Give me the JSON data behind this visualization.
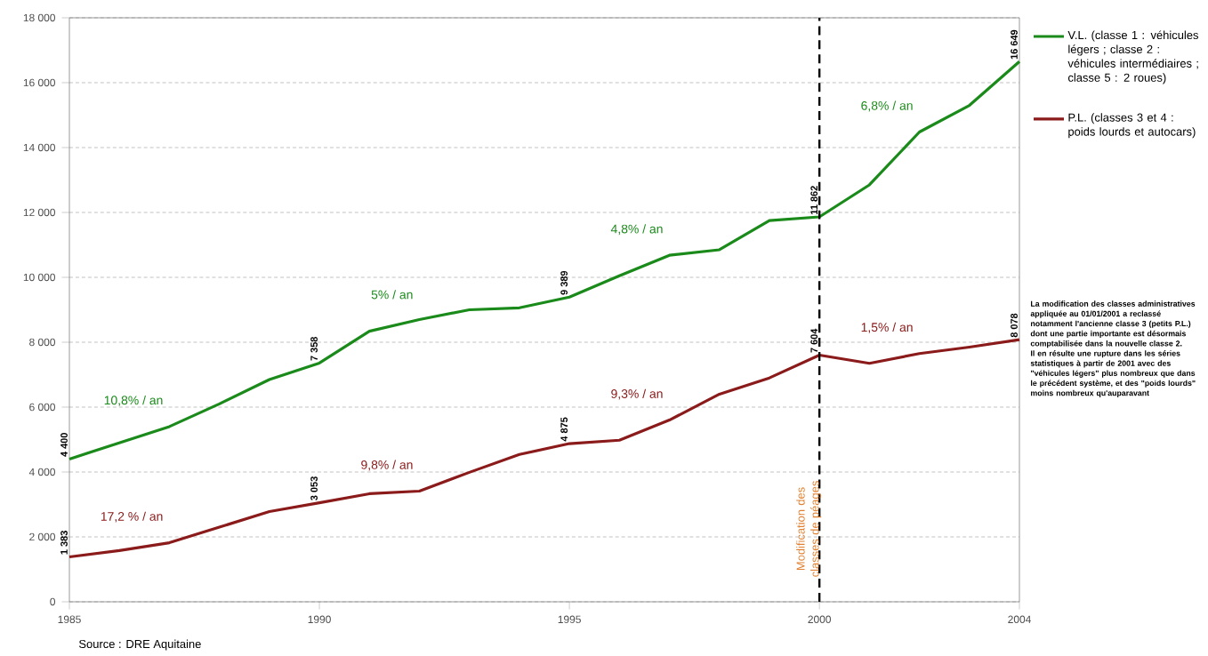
{
  "chart_data": {
    "type": "line",
    "x": [
      1985,
      1986,
      1987,
      1988,
      1989,
      1990,
      1991,
      1992,
      1993,
      1994,
      1995,
      1996,
      1997,
      1998,
      1999,
      2000,
      2001,
      2002,
      2003,
      2004
    ],
    "series": [
      {
        "name": "V.L. (classe 1 : véhicules légers ; classe 2 : véhicules intermédiaires ; classe 5 : 2 roues)",
        "color": "#1a8a1a",
        "values": [
          4400,
          4900,
          5400,
          6100,
          6850,
          7358,
          8340,
          8700,
          9000,
          9060,
          9389,
          10050,
          10680,
          10850,
          11750,
          11862,
          12850,
          14480,
          15300,
          16649
        ],
        "value_labels": [
          "4 400",
          null,
          null,
          null,
          null,
          "7 358",
          null,
          null,
          null,
          null,
          "9 389",
          null,
          null,
          null,
          null,
          "11 862",
          null,
          null,
          null,
          "16 649"
        ]
      },
      {
        "name": "P.L. (classes 3 et 4 : poids lourds et autocars)",
        "color": "#8b1a1a",
        "values": [
          1383,
          1580,
          1820,
          2300,
          2780,
          3053,
          3330,
          3410,
          3990,
          4540,
          4875,
          4980,
          5600,
          6400,
          6900,
          7604,
          7350,
          7650,
          7850,
          8078
        ],
        "value_labels": [
          "1 383",
          null,
          null,
          null,
          null,
          "3 053",
          null,
          null,
          null,
          null,
          "4 875",
          null,
          null,
          null,
          null,
          "7 604",
          null,
          null,
          null,
          "8 078"
        ]
      }
    ],
    "xlim": [
      1985,
      2004
    ],
    "xticks": [
      1985,
      1990,
      1995,
      2000,
      2004
    ],
    "ylim": [
      0,
      18000
    ],
    "yticks": [
      0,
      {
        "value": 2000,
        "label": "2 000"
      },
      {
        "value": 4000,
        "label": "4 000"
      },
      {
        "value": 6000,
        "label": "6 000"
      },
      {
        "value": 8000,
        "label": "8 000"
      },
      {
        "value": 10000,
        "label": "10 000"
      },
      {
        "value": 12000,
        "label": "12 000"
      },
      {
        "value": 14000,
        "label": "14 000"
      },
      {
        "value": 16000,
        "label": "16 000"
      },
      {
        "value": 18000,
        "label": "18 000"
      }
    ],
    "grid": "y",
    "legend": "right",
    "marker": "none",
    "line_style": "solid",
    "ref_lines": [
      {
        "axis": "x",
        "value": 2000,
        "label": "Modification des classes de péages",
        "color": "#000000",
        "line_style": "dashed"
      }
    ],
    "annotations": [
      "10,8% / an",
      "5% / an",
      "4,8% / an",
      "6,8% / an",
      "17,2 % / an",
      "9,8% / an",
      "9,3% / an",
      "1,5% / an",
      "La modification des classes administratives appliquée au 01/01/2001 a reclassé notamment l'ancienne classe 3 (petits P.L.) dont une partie importante est désormais comptabilisée dans la nouvelle classe 2. Il en résulte une rupture dans les séries statistiques à partir de 2001 avec des \"véhicules légers\" plus nombreux que dans le précédent système, et des \"poids lourds\" moins nombreux qu'auparavant",
      "Source : DRE Aquitaine"
    ]
  }
}
